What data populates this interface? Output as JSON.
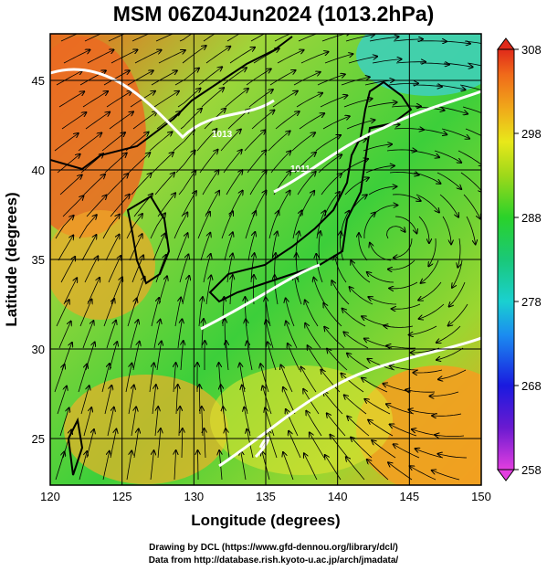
{
  "title": "MSM 06Z04Jun2024 (1013.2hPa)",
  "credits": {
    "line1": "Drawing by DCL (https://www.gfd-dennou.org/library/dcl/)",
    "line2": "Data from http://database.rish.kyoto-u.ac.jp/arch/jmadata/"
  },
  "map": {
    "xlabel": "Longitude (degrees)",
    "ylabel": "Latitude  (degrees)",
    "lon_range": [
      120,
      150
    ],
    "lat_range": [
      22.4,
      47.6
    ],
    "lon_ticks": [
      120,
      125,
      130,
      135,
      140,
      145,
      150
    ],
    "lat_ticks": [
      25,
      30,
      35,
      40,
      45
    ],
    "grid": true,
    "field": "temperature (K) shaded with streamlines; white isobar contours",
    "isobar_labels": [
      "1013",
      "1011"
    ]
  },
  "colorbar": {
    "ticks": [
      258,
      268,
      278,
      288,
      298,
      308
    ],
    "range": [
      258,
      308
    ],
    "colors": [
      "#e040e0",
      "#6a1ad0",
      "#1a1adf",
      "#1b8cf0",
      "#1ad0d0",
      "#1ac878",
      "#2ad22a",
      "#9ed81a",
      "#e8e81a",
      "#f0a81a",
      "#f06a1a",
      "#e02a1a"
    ]
  }
}
